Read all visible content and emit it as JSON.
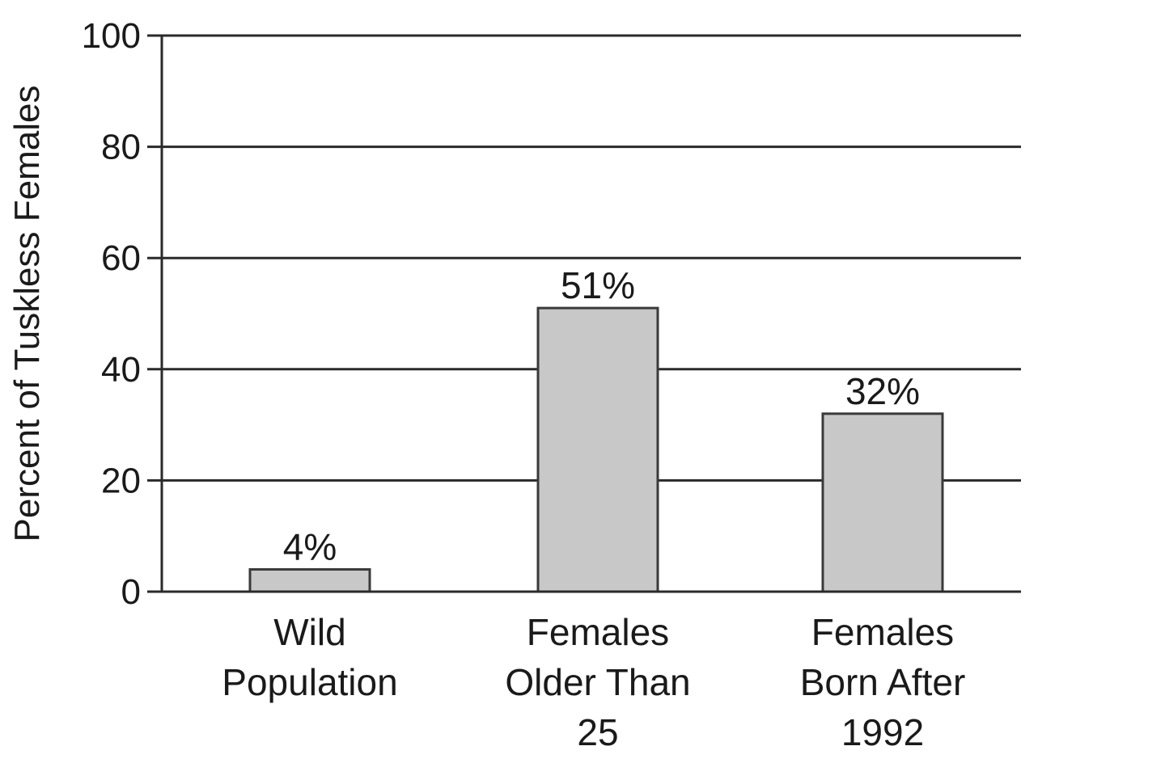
{
  "chart_data": {
    "type": "bar",
    "title": "",
    "xlabel": "",
    "ylabel": "Percent of Tuskless Females",
    "categories": [
      [
        "Wild",
        "Population"
      ],
      [
        "Females",
        "Older Than",
        "25"
      ],
      [
        "Females",
        "Born After",
        "1992"
      ]
    ],
    "values": [
      4,
      51,
      32
    ],
    "data_labels": [
      "4%",
      "51%",
      "32%"
    ],
    "ylim": [
      0,
      100
    ],
    "yticks": [
      0,
      20,
      40,
      60,
      80,
      100
    ],
    "ytick_labels": [
      "0",
      "20",
      "40",
      "60",
      "80",
      "100"
    ],
    "grid": true,
    "colors": {
      "bar_fill": "#c8c8c8",
      "bar_stroke": "#3a3a3a",
      "grid": "#2a2a2a",
      "text": "#1a1a1a"
    }
  }
}
